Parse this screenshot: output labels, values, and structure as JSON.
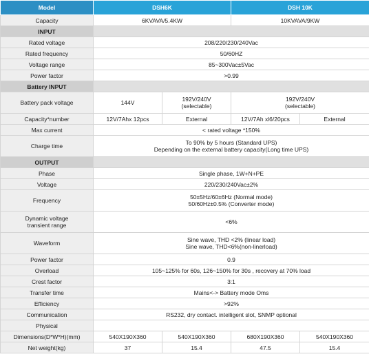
{
  "header": [
    "Model",
    "DSH6K",
    "DSH 10K"
  ],
  "rows": [
    {
      "label": "Capacity",
      "cells": [
        "6KVAVA/5.4KW",
        "10KVAVA/9KW"
      ]
    },
    {
      "section": "INPUT"
    },
    {
      "label": "Rated voltage",
      "cells": [
        "208/220/230/240Vac"
      ]
    },
    {
      "label": "Rated frequency",
      "cells": [
        "50/60HZ"
      ]
    },
    {
      "label": "Voltage range",
      "cells": [
        "85~300Vac±5Vac"
      ]
    },
    {
      "label": "Power factor",
      "cells": [
        ">0.99"
      ]
    },
    {
      "section": "Battery INPUT"
    },
    {
      "label": "Battery pack voltage",
      "cells": [
        "144V",
        "192V/240V\n(selectable)",
        "192V/240V\n(selectable)"
      ]
    },
    {
      "label": "Capacity*number",
      "cells": [
        "12V/7Ahx 12pcs",
        "External",
        "12V/7Ah xl6/20pcs",
        "External"
      ]
    },
    {
      "label": "Max current",
      "cells": [
        "< rated voltage *150%"
      ]
    },
    {
      "label": "Charge time",
      "cells": [
        "To 90% by 5 hours (Standard UPS)\nDepending on the external battery capacity(Long time UPS)"
      ]
    },
    {
      "section": "OUTPUT"
    },
    {
      "label": "Phase",
      "cells": [
        "Single phase, 1W+N+PE"
      ]
    },
    {
      "label": "Voltage",
      "cells": [
        "220/230/240Vac±2%"
      ]
    },
    {
      "label": "Frequency",
      "cells": [
        "50±5Hz/60±6Hz (Normal mode)\n50/60Hz±0.5% (Converter mode)"
      ]
    },
    {
      "label": "Dynamic voltage\ntransient range",
      "cells": [
        "<6%"
      ]
    },
    {
      "label": "Waveform",
      "cells": [
        "Sine wave, THD <2% (linear load)\nSine wave, THD<6%(non-linerload)"
      ]
    },
    {
      "label": "Power factor",
      "cells": [
        "0.9"
      ]
    },
    {
      "label": "Overload",
      "cells": [
        "105~125% for 60s, 126~150% for 30s , recovery at 70% load"
      ]
    },
    {
      "label": "Crest factor",
      "cells": [
        "3:1"
      ]
    },
    {
      "label": "Transfer time",
      "cells": [
        "Mains<-> Battery mode  Oms"
      ]
    },
    {
      "label": "Efficiency",
      "cells": [
        ">92%"
      ]
    },
    {
      "label": "Communication",
      "cells": [
        "RS232, dry contact. intelligent slot, SNMP optional"
      ]
    },
    {
      "label": "Physical",
      "cells": []
    },
    {
      "label": "Dimensions(D*W*H)(mm)",
      "cells": [
        "540X190X360",
        "540X190X360",
        "680X190X360",
        "540X190X360"
      ]
    },
    {
      "label": "Net weight(kg)",
      "cells": [
        "37",
        "15.4",
        "47.5",
        "15.4"
      ]
    }
  ]
}
